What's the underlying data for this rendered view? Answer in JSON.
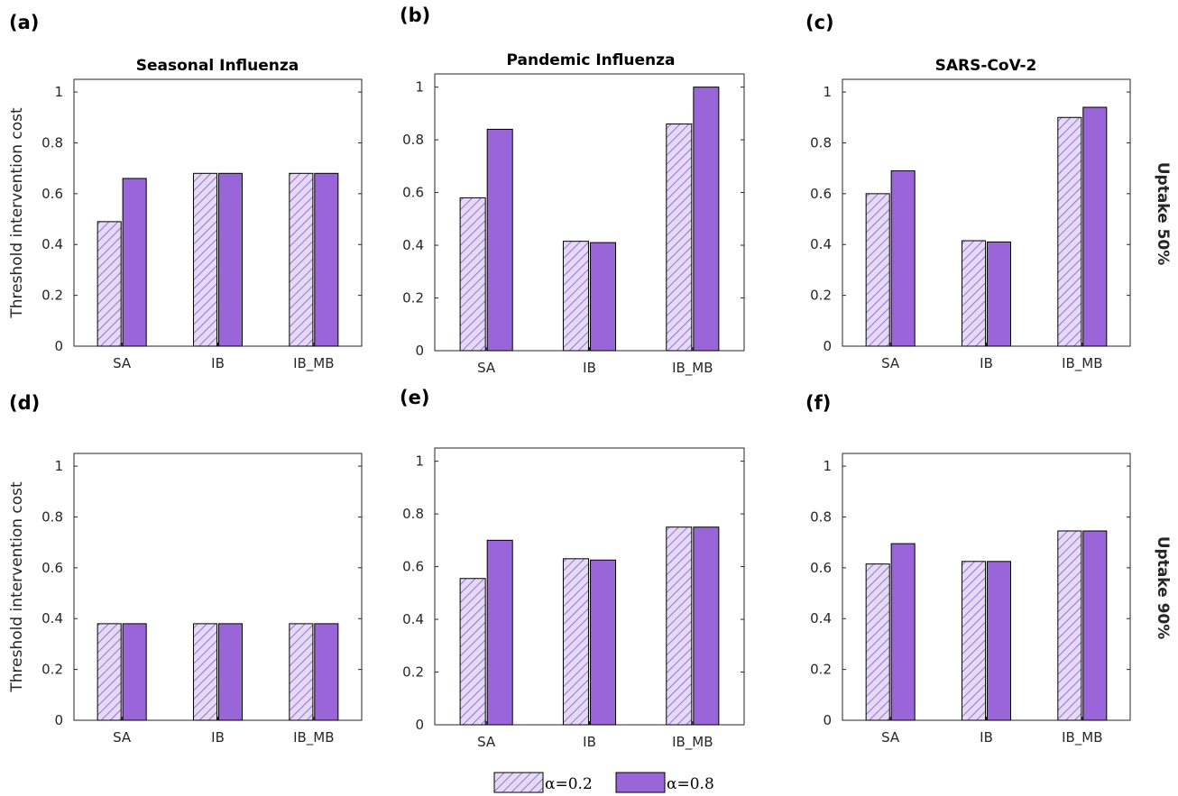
{
  "legend": {
    "items": [
      {
        "label": "α=0.2",
        "style": "hatched",
        "fill": "#e5d9f5",
        "hatch": "#7e5ccf"
      },
      {
        "label": "α=0.8",
        "style": "solid",
        "fill": "#9a65d9"
      }
    ]
  },
  "row_labels": [
    "Uptake 50%",
    "Uptake 90%"
  ],
  "colors": {
    "solid": "#9a65d9",
    "hatch_bg": "#e5d9f5",
    "hatch_line": "#7e5ccf"
  },
  "chart_data": [
    {
      "panel": "(a)",
      "type": "bar",
      "title": "Seasonal Influenza",
      "ylabel": "Threshold intervention cost",
      "categories": [
        "SA",
        "IB",
        "IB_MB"
      ],
      "ylim": [
        0,
        1.05
      ],
      "yticks": [
        "0",
        "0.2",
        "0.4",
        "0.6",
        "0.8",
        "1"
      ],
      "series": [
        {
          "name": "α=0.2",
          "values": [
            0.49,
            0.68,
            0.68
          ]
        },
        {
          "name": "α=0.8",
          "values": [
            0.66,
            0.68,
            0.68
          ]
        }
      ]
    },
    {
      "panel": "(b)",
      "type": "bar",
      "title": "Pandemic Influenza",
      "ylabel": "",
      "categories": [
        "SA",
        "IB",
        "IB_MB"
      ],
      "ylim": [
        0,
        1.05
      ],
      "yticks": [
        "0",
        "0.2",
        "0.4",
        "0.6",
        "0.8",
        "1"
      ],
      "series": [
        {
          "name": "α=0.2",
          "values": [
            0.58,
            0.415,
            0.86
          ]
        },
        {
          "name": "α=0.8",
          "values": [
            0.84,
            0.41,
            1.0
          ]
        }
      ]
    },
    {
      "panel": "(c)",
      "type": "bar",
      "title": "SARS-CoV-2",
      "ylabel": "",
      "categories": [
        "SA",
        "IB",
        "IB_MB"
      ],
      "ylim": [
        0,
        1.05
      ],
      "yticks": [
        "0",
        "0.2",
        "0.4",
        "0.6",
        "0.8",
        "1"
      ],
      "series": [
        {
          "name": "α=0.2",
          "values": [
            0.6,
            0.415,
            0.9
          ]
        },
        {
          "name": "α=0.8",
          "values": [
            0.69,
            0.41,
            0.94
          ]
        }
      ]
    },
    {
      "panel": "(d)",
      "type": "bar",
      "title": "",
      "ylabel": "Threshold intervention cost",
      "categories": [
        "SA",
        "IB",
        "IB_MB"
      ],
      "ylim": [
        0,
        1.05
      ],
      "yticks": [
        "0",
        "0.2",
        "0.4",
        "0.6",
        "0.8",
        "1"
      ],
      "series": [
        {
          "name": "α=0.2",
          "values": [
            0.38,
            0.38,
            0.38
          ]
        },
        {
          "name": "α=0.8",
          "values": [
            0.38,
            0.38,
            0.38
          ]
        }
      ]
    },
    {
      "panel": "(e)",
      "type": "bar",
      "title": "",
      "ylabel": "",
      "categories": [
        "SA",
        "IB",
        "IB_MB"
      ],
      "ylim": [
        0,
        1.05
      ],
      "yticks": [
        "0",
        "0.2",
        "0.4",
        "0.6",
        "0.8",
        "1"
      ],
      "series": [
        {
          "name": "α=0.2",
          "values": [
            0.555,
            0.63,
            0.75
          ]
        },
        {
          "name": "α=0.8",
          "values": [
            0.7,
            0.625,
            0.75
          ]
        }
      ]
    },
    {
      "panel": "(f)",
      "type": "bar",
      "title": "",
      "ylabel": "",
      "categories": [
        "SA",
        "IB",
        "IB_MB"
      ],
      "ylim": [
        0,
        1.05
      ],
      "yticks": [
        "0",
        "0.2",
        "0.4",
        "0.6",
        "0.8",
        "1"
      ],
      "series": [
        {
          "name": "α=0.2",
          "values": [
            0.615,
            0.625,
            0.745
          ]
        },
        {
          "name": "α=0.8",
          "values": [
            0.695,
            0.625,
            0.745
          ]
        }
      ]
    }
  ]
}
